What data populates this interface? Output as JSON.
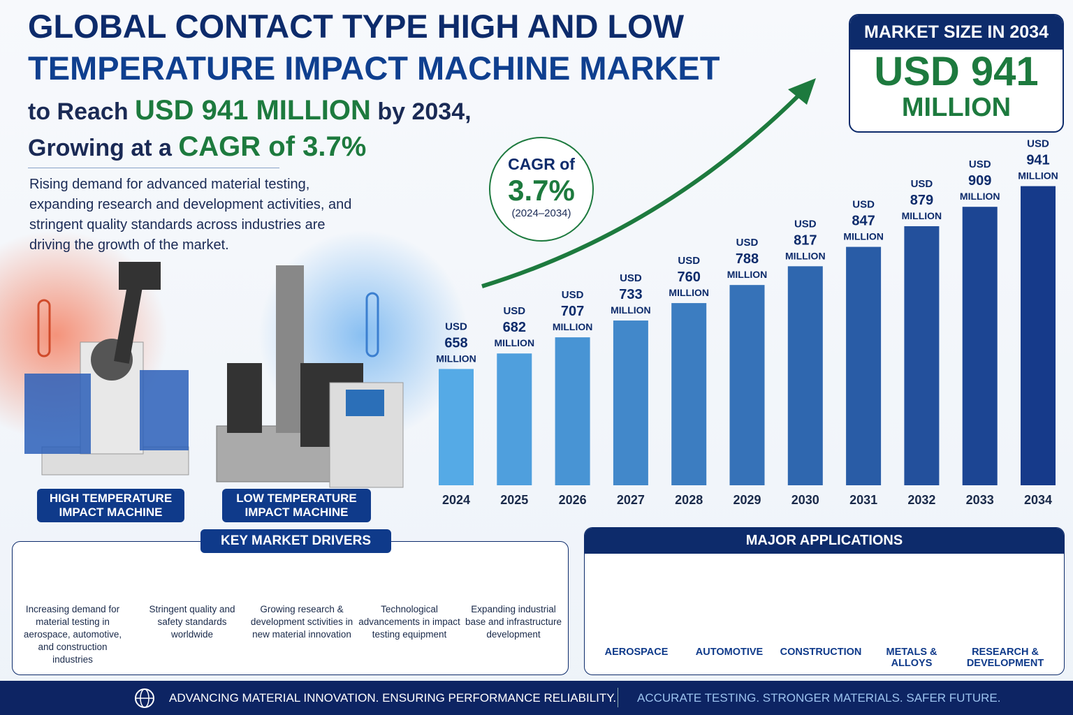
{
  "header": {
    "title_line1": "GLOBAL CONTACT TYPE HIGH AND LOW",
    "title_line2": "TEMPERATURE IMPACT MACHINE MARKET",
    "sub1a": "to Reach",
    "sub1b": "USD 941 MILLION",
    "sub1c": "by 2034,",
    "sub2a": "Growing at a",
    "sub2b": "CAGR of 3.7%",
    "description": "Rising demand for advanced material testing, expanding research and development activities, and stringent quality standards across industries are driving the growth of the market."
  },
  "machines": [
    "HIGH TEMPERATURE IMPACT MACHINE",
    "LOW TEMPERATURE IMPACT MACHINE"
  ],
  "market_size": {
    "label": "MARKET SIZE IN 2034",
    "value": "USD 941",
    "unit": "MILLION"
  },
  "cagr": {
    "label": "CAGR of",
    "value": "3.7%",
    "period": "(2024–2034)"
  },
  "chart_data": {
    "type": "bar",
    "categories": [
      "2024",
      "2025",
      "2026",
      "2027",
      "2028",
      "2029",
      "2030",
      "2031",
      "2032",
      "2033",
      "2034"
    ],
    "values": [
      658,
      682,
      707,
      733,
      760,
      788,
      817,
      847,
      879,
      909,
      941
    ],
    "value_prefix": "USD",
    "value_suffix": "MILLION",
    "ylim": [
      478,
      1000
    ],
    "color_range": [
      "#55aae6",
      "#163a8a"
    ]
  },
  "drivers": {
    "title": "KEY MARKET DRIVERS",
    "items": [
      "Increasing demand for material testing in aerospace, automotive, and construction industries",
      "Stringent quality and safety standards worldwide",
      "Growing research & development sctivities in new material innovation",
      "Technological advancements in impact testing equipment",
      "Expanding industrial base and infrastructure development"
    ]
  },
  "applications": {
    "title": "MAJOR APPLICATIONS",
    "items": [
      "AEROSPACE",
      "AUTOMOTIVE",
      "CONSTRUCTION",
      "METALS & ALLOYS",
      "RESEARCH & DEVELOPMENT"
    ]
  },
  "footer": {
    "left": "ADVANCING MATERIAL INNOVATION. ENSURING PERFORMANCE RELIABILITY.",
    "right": "ACCURATE TESTING. STRONGER MATERIALS. SAFER FUTURE."
  }
}
